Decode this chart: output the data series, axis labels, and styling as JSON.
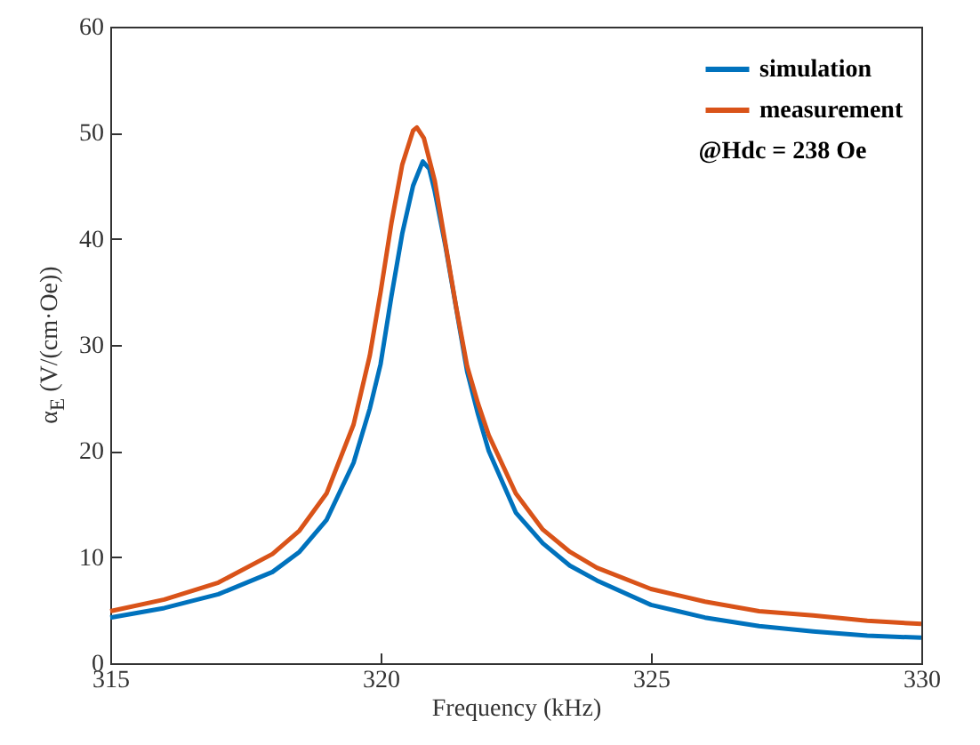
{
  "chart_data": {
    "type": "line",
    "xlabel": "Frequency (kHz)",
    "ylabel": "α$_{E}$ (V/(cm·Oe))",
    "annotations": [
      "@Hdc = 238 Oe"
    ],
    "xlim": [
      315,
      330
    ],
    "xticks": [
      315,
      320,
      325,
      330
    ],
    "ylim": [
      0,
      60
    ],
    "yticks": [
      0,
      10,
      20,
      30,
      40,
      50,
      60
    ],
    "legend": "top right",
    "grid": false,
    "line_style": "solid",
    "marker": "none",
    "series": [
      {
        "name": "simulation",
        "color": "#0072bd",
        "x": [
          315,
          316,
          317,
          318,
          318.5,
          319,
          319.5,
          319.8,
          320,
          320.2,
          320.4,
          320.6,
          320.78,
          320.9,
          321,
          321.2,
          321.6,
          321.8,
          322,
          322.5,
          323,
          323.5,
          324,
          325,
          326,
          327,
          328,
          329,
          330
        ],
        "values": [
          4.3,
          5.2,
          6.5,
          8.6,
          10.5,
          13.5,
          18.9,
          24,
          28.2,
          34.6,
          40.5,
          45,
          47.3,
          46.6,
          44.5,
          39.3,
          27.5,
          23.5,
          20,
          14.2,
          11.3,
          9.2,
          7.8,
          5.5,
          4.3,
          3.5,
          3.0,
          2.6,
          2.4
        ]
      },
      {
        "name": "measurement",
        "color": "#d95319",
        "x": [
          315,
          316,
          317,
          318,
          318.5,
          319,
          319.5,
          319.8,
          320,
          320.2,
          320.4,
          320.6,
          320.67,
          320.8,
          321,
          321.2,
          321.4,
          321.6,
          321.8,
          322,
          322.5,
          323,
          323.5,
          324,
          325,
          326,
          327,
          328,
          329,
          330
        ],
        "values": [
          4.9,
          6.0,
          7.6,
          10.3,
          12.5,
          16,
          22.5,
          29,
          35,
          41.5,
          47,
          50.2,
          50.5,
          49.5,
          45.5,
          39.5,
          33.5,
          28,
          24.5,
          21.5,
          16,
          12.6,
          10.5,
          9,
          7,
          5.8,
          4.9,
          4.5,
          4.0,
          3.7
        ]
      }
    ]
  }
}
